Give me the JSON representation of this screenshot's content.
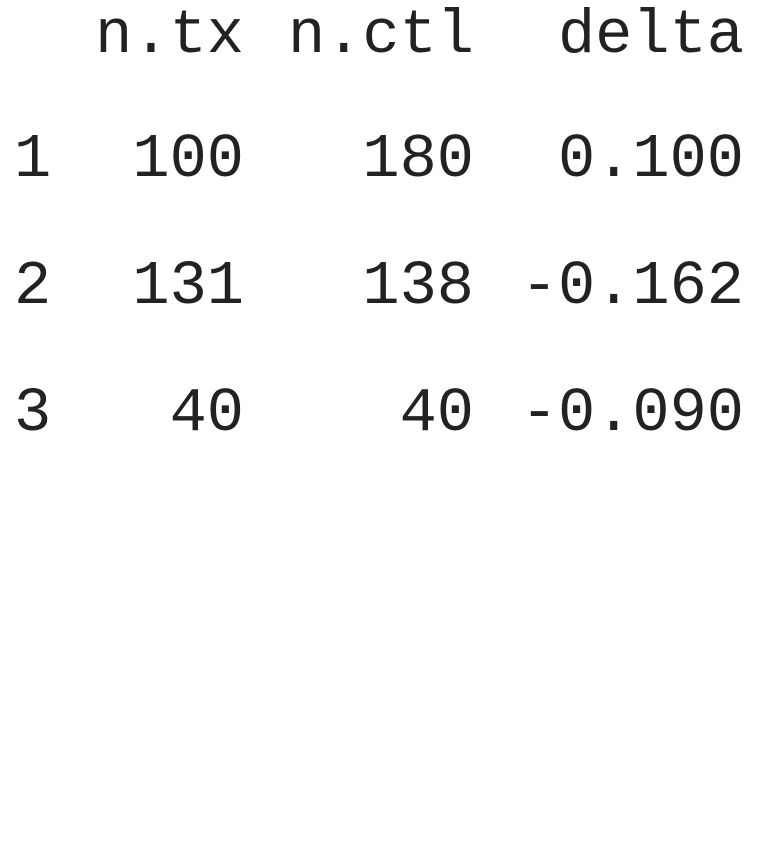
{
  "table": {
    "columns": [
      "n.tx",
      "n.ctl",
      "delta"
    ],
    "rows": [
      {
        "index": "1",
        "n_tx": "100",
        "n_ctl": "180",
        "delta": "0.100"
      },
      {
        "index": "2",
        "n_tx": "131",
        "n_ctl": "138",
        "delta": "-0.162"
      },
      {
        "index": "3",
        "n_tx": "40",
        "n_ctl": "40",
        "delta": "-0.090"
      }
    ]
  }
}
